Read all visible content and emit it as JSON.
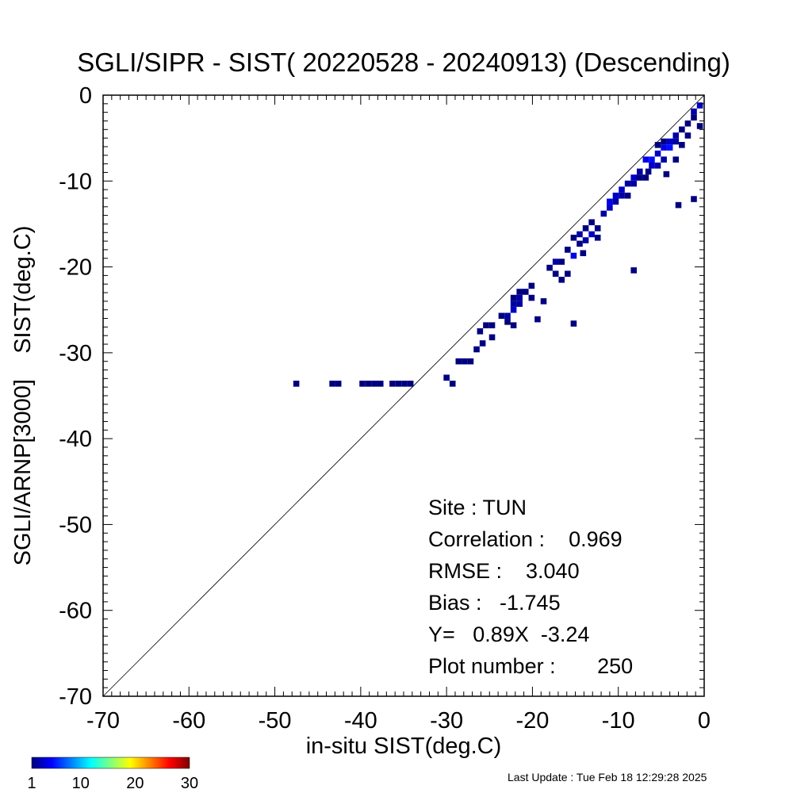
{
  "chart_data": {
    "type": "heatmap",
    "title": "SGLI/SIPR - SIST( 20220528 - 20240913) (Descending)",
    "xlabel": "in-situ SIST(deg.C)",
    "ylabel": "SGLI/ARNP[3000]    SIST(deg.C)",
    "xlim": [
      -70,
      0
    ],
    "ylim": [
      -70,
      0
    ],
    "x_ticks": [
      "-70",
      "-60",
      "-50",
      "-40",
      "-30",
      "-20",
      "-10",
      "0"
    ],
    "y_ticks": [
      "-70",
      "-60",
      "-50",
      "-40",
      "-30",
      "-20",
      "-10",
      "0"
    ],
    "tick_values": [
      -70,
      -60,
      -50,
      -40,
      -30,
      -20,
      -10,
      0
    ],
    "one_to_one_line": true,
    "grid": false,
    "bin_size": 0.7,
    "points": [
      {
        "x": -47.5,
        "y": -33.6,
        "n": 1
      },
      {
        "x": -43.3,
        "y": -33.6,
        "n": 1
      },
      {
        "x": -42.6,
        "y": -33.6,
        "n": 1
      },
      {
        "x": -39.8,
        "y": -33.6,
        "n": 1
      },
      {
        "x": -39.1,
        "y": -33.6,
        "n": 1
      },
      {
        "x": -38.4,
        "y": -33.6,
        "n": 1
      },
      {
        "x": -37.7,
        "y": -33.6,
        "n": 1
      },
      {
        "x": -36.3,
        "y": -33.6,
        "n": 1
      },
      {
        "x": -35.6,
        "y": -33.6,
        "n": 1
      },
      {
        "x": -34.9,
        "y": -33.6,
        "n": 1
      },
      {
        "x": -34.2,
        "y": -33.6,
        "n": 1
      },
      {
        "x": -30.0,
        "y": -32.9,
        "n": 1
      },
      {
        "x": -29.3,
        "y": -33.6,
        "n": 1
      },
      {
        "x": -28.6,
        "y": -31.0,
        "n": 1
      },
      {
        "x": -27.9,
        "y": -31.0,
        "n": 1
      },
      {
        "x": -27.2,
        "y": -31.0,
        "n": 1
      },
      {
        "x": -26.5,
        "y": -29.6,
        "n": 1
      },
      {
        "x": -25.8,
        "y": -28.9,
        "n": 1
      },
      {
        "x": -26.1,
        "y": -27.5,
        "n": 1
      },
      {
        "x": -25.4,
        "y": -26.8,
        "n": 1
      },
      {
        "x": -24.7,
        "y": -26.8,
        "n": 1
      },
      {
        "x": -24.7,
        "y": -28.2,
        "n": 1
      },
      {
        "x": -23.6,
        "y": -25.7,
        "n": 1
      },
      {
        "x": -22.9,
        "y": -25.7,
        "n": 2
      },
      {
        "x": -22.2,
        "y": -25.0,
        "n": 3
      },
      {
        "x": -22.9,
        "y": -26.4,
        "n": 1
      },
      {
        "x": -21.5,
        "y": -24.3,
        "n": 2
      },
      {
        "x": -22.2,
        "y": -23.6,
        "n": 1
      },
      {
        "x": -21.5,
        "y": -23.6,
        "n": 2
      },
      {
        "x": -20.8,
        "y": -22.9,
        "n": 1
      },
      {
        "x": -22.2,
        "y": -26.8,
        "n": 1
      },
      {
        "x": -22.2,
        "y": -24.3,
        "n": 2
      },
      {
        "x": -21.5,
        "y": -22.9,
        "n": 1
      },
      {
        "x": -20.1,
        "y": -22.2,
        "n": 1
      },
      {
        "x": -20.1,
        "y": -23.6,
        "n": 1
      },
      {
        "x": -19.4,
        "y": -26.1,
        "n": 1
      },
      {
        "x": -18.7,
        "y": -24.0,
        "n": 1
      },
      {
        "x": -18.0,
        "y": -20.1,
        "n": 1
      },
      {
        "x": -17.3,
        "y": -19.4,
        "n": 2
      },
      {
        "x": -17.3,
        "y": -20.8,
        "n": 1
      },
      {
        "x": -16.6,
        "y": -19.4,
        "n": 1
      },
      {
        "x": -16.6,
        "y": -21.5,
        "n": 1
      },
      {
        "x": -15.9,
        "y": -20.8,
        "n": 1
      },
      {
        "x": -15.9,
        "y": -18.0,
        "n": 1
      },
      {
        "x": -15.2,
        "y": -18.7,
        "n": 4
      },
      {
        "x": -15.2,
        "y": -16.6,
        "n": 1
      },
      {
        "x": -14.5,
        "y": -17.3,
        "n": 1
      },
      {
        "x": -14.5,
        "y": -16.2,
        "n": 2
      },
      {
        "x": -13.8,
        "y": -15.5,
        "n": 1
      },
      {
        "x": -13.8,
        "y": -16.9,
        "n": 2
      },
      {
        "x": -13.1,
        "y": -16.2,
        "n": 3
      },
      {
        "x": -13.1,
        "y": -14.8,
        "n": 1
      },
      {
        "x": -12.4,
        "y": -16.6,
        "n": 1
      },
      {
        "x": -12.4,
        "y": -15.5,
        "n": 1
      },
      {
        "x": -14.1,
        "y": -18.4,
        "n": 1
      },
      {
        "x": -11.7,
        "y": -13.8,
        "n": 2
      },
      {
        "x": -11.0,
        "y": -13.1,
        "n": 3
      },
      {
        "x": -11.0,
        "y": -12.4,
        "n": 4
      },
      {
        "x": -10.3,
        "y": -12.4,
        "n": 2
      },
      {
        "x": -10.3,
        "y": -11.7,
        "n": 3
      },
      {
        "x": -9.6,
        "y": -11.7,
        "n": 2
      },
      {
        "x": -9.6,
        "y": -11.0,
        "n": 3
      },
      {
        "x": -8.9,
        "y": -10.3,
        "n": 2
      },
      {
        "x": -8.9,
        "y": -11.7,
        "n": 1
      },
      {
        "x": -8.2,
        "y": -9.6,
        "n": 3
      },
      {
        "x": -8.2,
        "y": -10.3,
        "n": 2
      },
      {
        "x": -7.5,
        "y": -9.6,
        "n": 1
      },
      {
        "x": -7.5,
        "y": -8.9,
        "n": 2
      },
      {
        "x": -6.8,
        "y": -9.6,
        "n": 1
      },
      {
        "x": -6.8,
        "y": -7.5,
        "n": 4
      },
      {
        "x": -6.1,
        "y": -7.5,
        "n": 5
      },
      {
        "x": -6.1,
        "y": -8.2,
        "n": 3
      },
      {
        "x": -5.4,
        "y": -6.8,
        "n": 3
      },
      {
        "x": -5.4,
        "y": -8.2,
        "n": 2
      },
      {
        "x": -4.7,
        "y": -6.1,
        "n": 4
      },
      {
        "x": -4.7,
        "y": -7.5,
        "n": 2
      },
      {
        "x": -4.0,
        "y": -5.4,
        "n": 3
      },
      {
        "x": -4.0,
        "y": -6.1,
        "n": 5
      },
      {
        "x": -3.3,
        "y": -4.7,
        "n": 2
      },
      {
        "x": -3.3,
        "y": -5.4,
        "n": 2
      },
      {
        "x": -3.3,
        "y": -7.5,
        "n": 1
      },
      {
        "x": -2.6,
        "y": -4.0,
        "n": 1
      },
      {
        "x": -2.6,
        "y": -5.8,
        "n": 1
      },
      {
        "x": -1.9,
        "y": -3.3,
        "n": 1
      },
      {
        "x": -1.9,
        "y": -4.7,
        "n": 1
      },
      {
        "x": -1.2,
        "y": -2.6,
        "n": 1
      },
      {
        "x": -1.2,
        "y": -1.9,
        "n": 2
      },
      {
        "x": -0.5,
        "y": -1.2,
        "n": 3
      },
      {
        "x": -0.5,
        "y": -3.6,
        "n": 1
      },
      {
        "x": -6.5,
        "y": -8.9,
        "n": 1
      },
      {
        "x": -4.4,
        "y": -9.2,
        "n": 1
      },
      {
        "x": -3.0,
        "y": -12.8,
        "n": 1
      },
      {
        "x": -1.2,
        "y": -12.1,
        "n": 1
      },
      {
        "x": -8.2,
        "y": -20.4,
        "n": 1
      },
      {
        "x": -15.2,
        "y": -26.6,
        "n": 1
      },
      {
        "x": -4.7,
        "y": -5.4,
        "n": 1
      },
      {
        "x": -5.4,
        "y": -5.8,
        "n": 1
      }
    ],
    "colorbar": {
      "min": 1,
      "max": 30,
      "tick_labels": [
        "1",
        "10",
        "20",
        "30"
      ],
      "tick_values": [
        1,
        10,
        20,
        30
      ],
      "colormap": [
        "#00007f",
        "#0000ff",
        "#007fff",
        "#00ffff",
        "#7fff7f",
        "#ffff00",
        "#ff7f00",
        "#ff0000",
        "#7f0000"
      ]
    },
    "stats": {
      "site": "Site : TUN",
      "correlation": "Correlation :    0.969",
      "rmse": "RMSE :    3.040",
      "bias": "Bias :   -1.745",
      "regression": "Y=   0.89X  -3.24",
      "plot_number": "Plot number :       250"
    }
  },
  "footer": {
    "last_update": "Last Update : Tue Feb 18 12:29:28 2025"
  }
}
